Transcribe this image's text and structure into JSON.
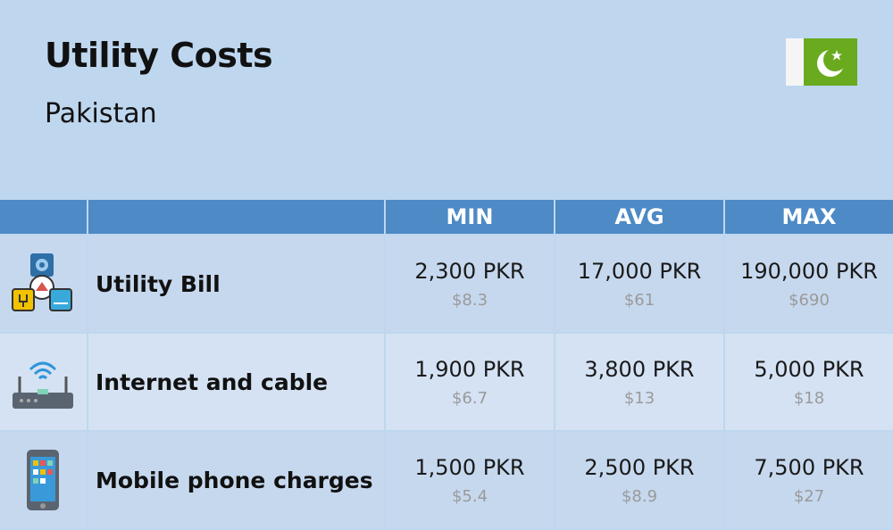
{
  "header": {
    "title": "Utility Costs",
    "subtitle": "Pakistan"
  },
  "table": {
    "columns": [
      "MIN",
      "AVG",
      "MAX"
    ],
    "rows": [
      {
        "label": "Utility Bill",
        "cells": [
          {
            "local": "2,300 PKR",
            "usd": "$8.3"
          },
          {
            "local": "17,000 PKR",
            "usd": "$61"
          },
          {
            "local": "190,000 PKR",
            "usd": "$690"
          }
        ]
      },
      {
        "label": "Internet and cable",
        "cells": [
          {
            "local": "1,900 PKR",
            "usd": "$6.7"
          },
          {
            "local": "3,800 PKR",
            "usd": "$13"
          },
          {
            "local": "5,000 PKR",
            "usd": "$18"
          }
        ]
      },
      {
        "label": "Mobile phone charges",
        "cells": [
          {
            "local": "1,500 PKR",
            "usd": "$5.4"
          },
          {
            "local": "2,500 PKR",
            "usd": "$8.9"
          },
          {
            "local": "7,500 PKR",
            "usd": "$27"
          }
        ]
      }
    ]
  }
}
